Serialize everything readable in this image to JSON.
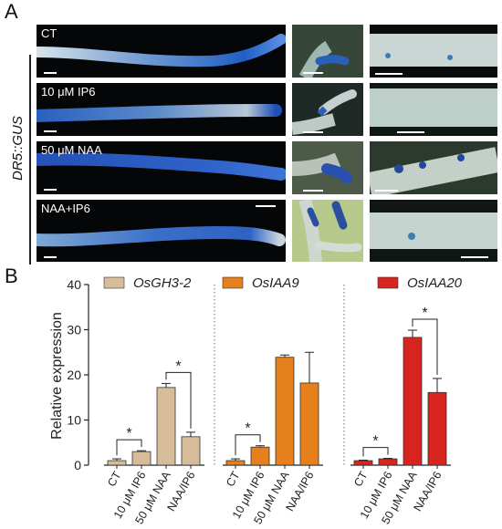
{
  "panel_a": {
    "letter": "A",
    "reporter_label": "DR5::GUS",
    "rows": [
      {
        "label": "CT"
      },
      {
        "label": "10 μM IP6"
      },
      {
        "label": "50 μM NAA"
      },
      {
        "label": "NAA+IP6"
      }
    ]
  },
  "panel_b": {
    "letter": "B"
  },
  "colors": {
    "OsGH3-2": "#d7bc99",
    "OsIAA9": "#e5801c",
    "OsIAA20": "#d8241e",
    "stain_blue": "#1f5fc4",
    "photo_bg": "#050608"
  },
  "chart_data": {
    "type": "bar",
    "ylabel": "Relative expression",
    "ylim": [
      0,
      40
    ],
    "yticks": [
      "0",
      "10",
      "20",
      "30",
      "40"
    ],
    "categories": [
      "CT",
      "10 μM IP6",
      "50 μM NAA",
      "NAA/IP6"
    ],
    "series": [
      {
        "name": "OsGH3-2",
        "values": [
          1.0,
          3.0,
          17.2,
          6.3
        ],
        "errors": [
          0.4,
          0.2,
          0.9,
          1.0
        ],
        "significance": [
          {
            "pair": [
              0,
              1
            ],
            "mark": "*"
          },
          {
            "pair": [
              2,
              3
            ],
            "mark": "*"
          }
        ]
      },
      {
        "name": "OsIAA9",
        "values": [
          1.0,
          4.0,
          23.9,
          18.2
        ],
        "errors": [
          0.4,
          0.3,
          0.5,
          6.8
        ],
        "significance": [
          {
            "pair": [
              0,
              1
            ],
            "mark": "*"
          }
        ]
      },
      {
        "name": "OsIAA20",
        "values": [
          1.0,
          1.4,
          28.3,
          16.1
        ],
        "errors": [
          0.1,
          0.1,
          1.6,
          3.1
        ],
        "significance": [
          {
            "pair": [
              0,
              1
            ],
            "mark": "*"
          },
          {
            "pair": [
              2,
              3
            ],
            "mark": "*"
          }
        ]
      }
    ],
    "grid": false,
    "legend": "top, one label per group"
  }
}
